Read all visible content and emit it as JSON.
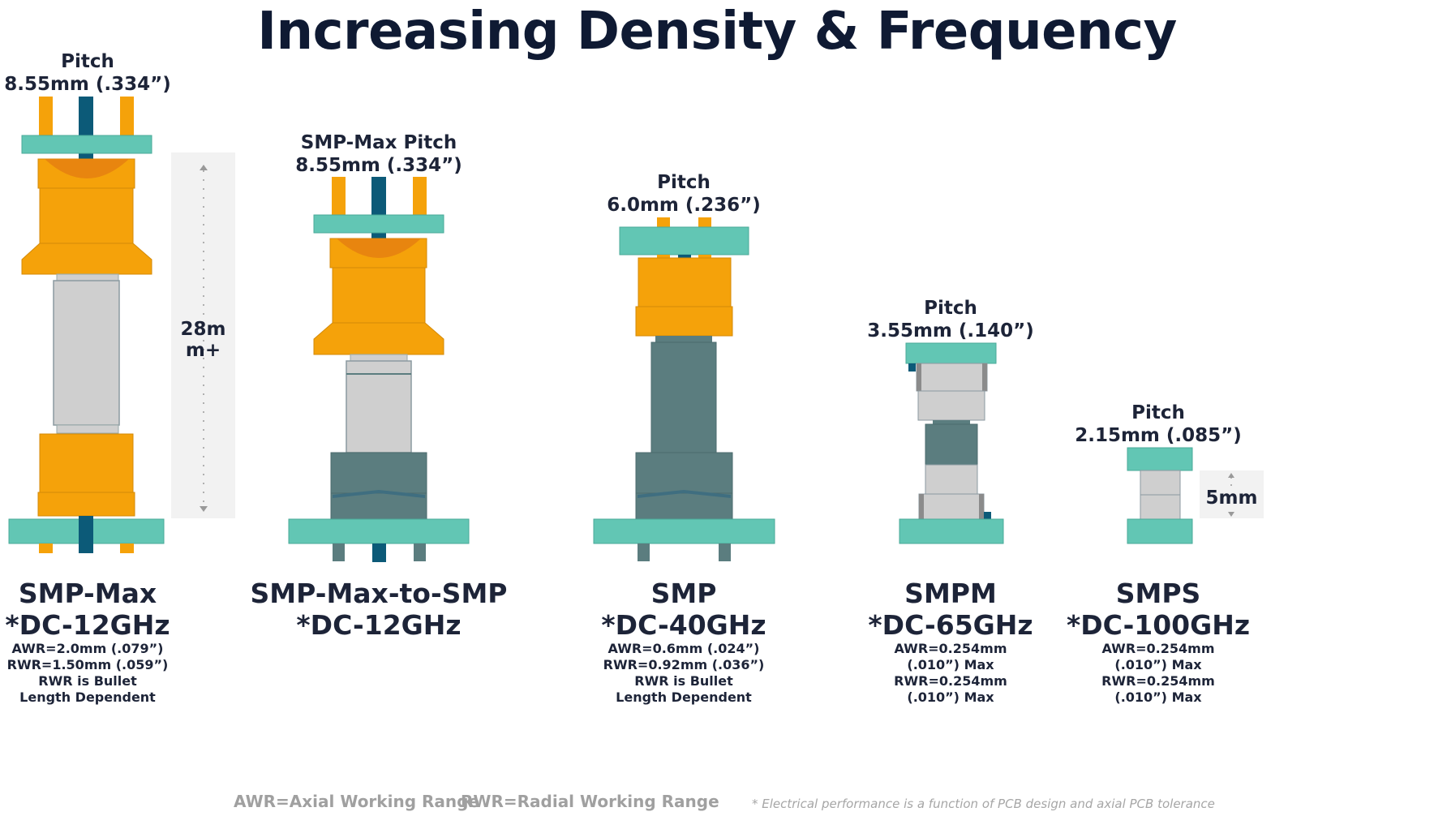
{
  "title": "Increasing Density & Frequency",
  "colors": {
    "orange": "#F5A20A",
    "orange_dark": "#E8850F",
    "teal": "#62C6B4",
    "navy": "#0C5A78",
    "slate": "#5B7D7F",
    "grey": "#CFCFCF"
  },
  "connectors": [
    {
      "pitch_label": "Pitch",
      "pitch_value": "8.55mm (.334”)",
      "name": "SMP-Max",
      "frequency": "*DC-12GHz",
      "specs": [
        "AWR=2.0mm (.079”)",
        "RWR=1.50mm (.059”)",
        "RWR is Bullet",
        "Length Dependent"
      ]
    },
    {
      "pitch_label": "SMP-Max Pitch",
      "pitch_value": "8.55mm (.334”)",
      "name": "SMP-Max-to-SMP",
      "frequency": "*DC-12GHz",
      "specs": []
    },
    {
      "pitch_label": "Pitch",
      "pitch_value": "6.0mm (.236”)",
      "name": "SMP",
      "frequency": "*DC-40GHz",
      "specs": [
        "AWR=0.6mm (.024”)",
        "RWR=0.92mm (.036”)",
        "RWR is Bullet",
        "Length Dependent"
      ]
    },
    {
      "pitch_label": "Pitch",
      "pitch_value": "3.55mm (.140”)",
      "name": "SMPM",
      "frequency": "*DC-65GHz",
      "specs": [
        "AWR=0.254mm",
        "(.010”) Max",
        "RWR=0.254mm",
        "(.010”) Max"
      ]
    },
    {
      "pitch_label": "Pitch",
      "pitch_value": "2.15mm (.085”)",
      "name": "SMPS",
      "frequency": "*DC-100GHz",
      "specs": [
        "AWR=0.254mm",
        "(.010”) Max",
        "RWR=0.254mm",
        "(.010”) Max"
      ]
    }
  ],
  "dimensions": {
    "tall_line1": "28m",
    "tall_line2": "m+",
    "short": "5mm"
  },
  "legend": {
    "awr": "AWR=Axial Working Range",
    "rwr": "RWR=Radial Working Range",
    "footnote": "* Electrical performance is a function of PCB design and axial PCB tolerance"
  }
}
